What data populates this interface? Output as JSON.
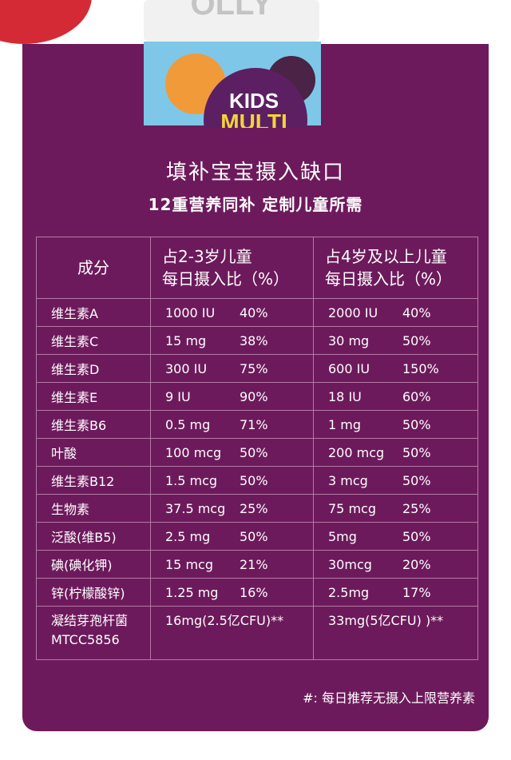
{
  "product": {
    "brand": "OLLY",
    "label_line1": "KIDS",
    "label_line2": "MULTI"
  },
  "header": {
    "title": "填补宝宝摄入缺口",
    "subtitle": "12重营养同补 定制儿童所需"
  },
  "table": {
    "columns": [
      "成分",
      "占2-3岁儿童\n每日摄入比（%）",
      "占4岁及以上儿童\n每日摄入比（%）"
    ],
    "rows": [
      [
        [
          "维生素A"
        ],
        [
          "1000 IU",
          "40%"
        ],
        [
          "2000 IU",
          "40%"
        ]
      ],
      [
        [
          "维生素C"
        ],
        [
          "15 mg",
          "38%"
        ],
        [
          "30 mg",
          "50%"
        ]
      ],
      [
        [
          "维生素D"
        ],
        [
          "300 IU",
          "75%"
        ],
        [
          "600 IU",
          "150%"
        ]
      ],
      [
        [
          "维生素E"
        ],
        [
          "9 IU",
          "90%"
        ],
        [
          "18 IU",
          "60%"
        ]
      ],
      [
        [
          "维生素B6"
        ],
        [
          "0.5 mg",
          "71%"
        ],
        [
          "1 mg",
          "50%"
        ]
      ],
      [
        [
          "叶酸"
        ],
        [
          "100 mcg",
          "50%"
        ],
        [
          "200 mcg",
          "50%"
        ]
      ],
      [
        [
          "维生素B12"
        ],
        [
          "1.5 mcg",
          "50%"
        ],
        [
          "3 mcg",
          "50%"
        ]
      ],
      [
        [
          "生物素"
        ],
        [
          "37.5 mcg",
          "25%"
        ],
        [
          "75 mcg",
          "25%"
        ]
      ],
      [
        [
          "泛酸(维B5)"
        ],
        [
          "2.5 mg",
          "50%"
        ],
        [
          "5mg",
          "50%"
        ]
      ],
      [
        [
          "碘(碘化钾)"
        ],
        [
          "15 mcg",
          "21%"
        ],
        [
          "30mcg",
          "20%"
        ]
      ],
      [
        [
          "锌(柠檬酸锌)"
        ],
        [
          "1.25 mg",
          "16%"
        ],
        [
          "2.5mg",
          "17%"
        ]
      ],
      [
        [
          "凝结芽孢杆菌\nMTCC5856"
        ],
        [
          "16mg(2.5亿CFU)**"
        ],
        [
          "33mg(5亿CFU) )**"
        ]
      ]
    ]
  },
  "footnote": "#:  每日推荐无摄入上限营养素"
}
